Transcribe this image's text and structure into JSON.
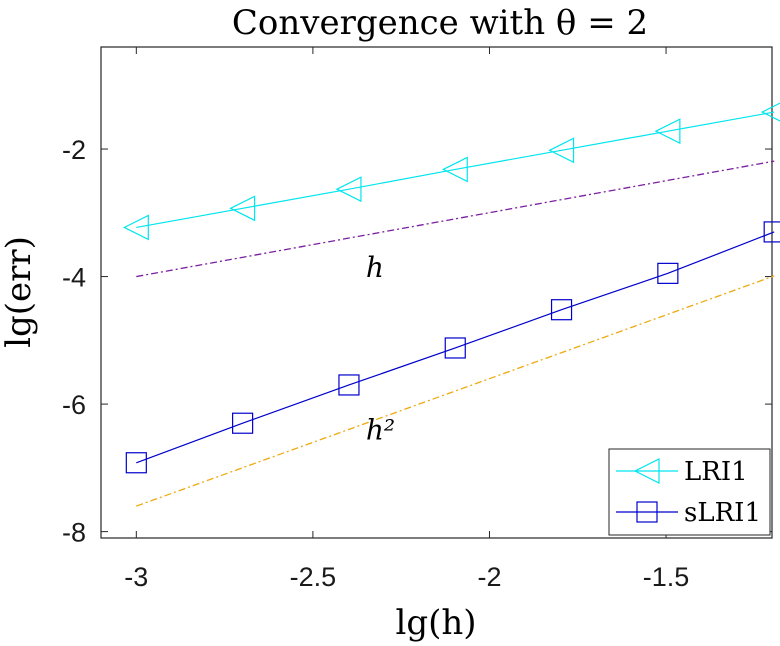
{
  "chart_data": {
    "type": "line",
    "title": "Convergence with θ = 2",
    "xlabel": "lg(h)",
    "ylabel": "lg(err)",
    "xlim": [
      -3.1,
      -1.2
    ],
    "ylim": [
      -8.1,
      -0.4
    ],
    "xticks": [
      -3,
      -2.5,
      -2,
      -1.5
    ],
    "xtick_labels": [
      "-3",
      "-2.5",
      "-2",
      "-1.5"
    ],
    "yticks": [
      -8,
      -6,
      -4,
      -2
    ],
    "ytick_labels": [
      "-8",
      "-6",
      "-4",
      "-2"
    ],
    "grid": false,
    "legend_position": "bottom-right",
    "series": [
      {
        "name": "LRI1",
        "color": "#00e5ee",
        "marker": "triangle-left",
        "x": [
          -3.0,
          -2.699,
          -2.3979,
          -2.0969,
          -1.7959,
          -1.4949,
          -1.1938
        ],
        "y": [
          -3.23,
          -2.93,
          -2.63,
          -2.32,
          -2.02,
          -1.72,
          -1.42
        ]
      },
      {
        "name": "sLRI1",
        "color": "#0000cc",
        "marker": "square",
        "x": [
          -3.0,
          -2.699,
          -2.3979,
          -2.0969,
          -1.7959,
          -1.4949,
          -1.1938
        ],
        "y": [
          -6.92,
          -6.3,
          -5.7,
          -5.12,
          -4.52,
          -3.95,
          -3.3
        ]
      }
    ],
    "reference_lines": [
      {
        "label": "h",
        "color": "#7b1fa2",
        "x": [
          -3.0,
          -1.1938
        ],
        "y": [
          -4.0,
          -2.19
        ],
        "label_at": [
          -2.35,
          -3.85
        ]
      },
      {
        "label": "h²",
        "color": "#eeaa11",
        "x": [
          -3.0,
          -1.1938
        ],
        "y": [
          -7.6,
          -3.99
        ],
        "label_at": [
          -2.35,
          -6.4
        ]
      }
    ]
  }
}
